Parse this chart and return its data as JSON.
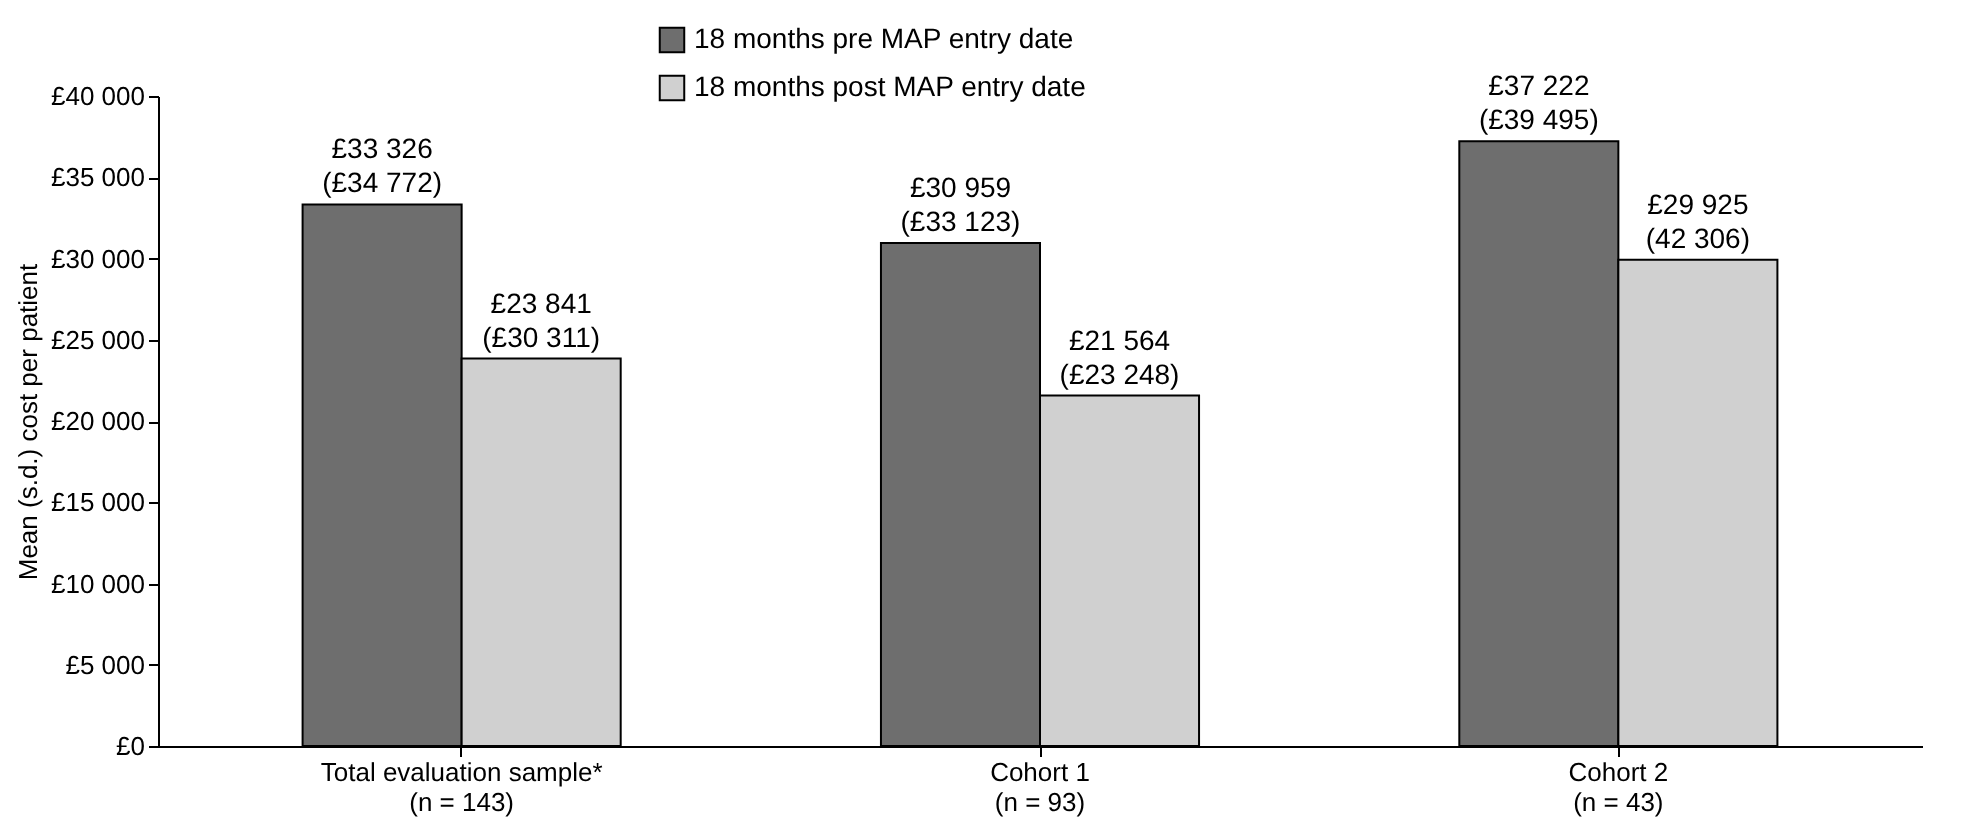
{
  "chart_data": {
    "type": "bar",
    "ylabel": "Mean (s.d.) cost per patient",
    "categories": [
      "Total evaluation sample*\n(n = 143)",
      "Cohort 1\n(n = 93)",
      "Cohort 2\n(n = 43)"
    ],
    "series": [
      {
        "name": "18 months pre MAP entry date",
        "color": "#6e6e6e",
        "values": [
          33326,
          30959,
          37222
        ],
        "value_labels": [
          "£33 326\n(£34 772)",
          "£30 959\n(£33 123)",
          "£37 222\n(£39 495)"
        ]
      },
      {
        "name": "18 months post MAP entry date",
        "color": "#d0d0d0",
        "values": [
          23841,
          21564,
          29925
        ],
        "value_labels": [
          "£23 841\n(£30 311)",
          "£21 564\n(£23 248)",
          "£29 925\n(42 306)"
        ]
      }
    ],
    "ylim": [
      0,
      40000
    ],
    "yticks": [
      {
        "value": 0,
        "label": "£0"
      },
      {
        "value": 5000,
        "label": "£5 000"
      },
      {
        "value": 10000,
        "label": "£10 000"
      },
      {
        "value": 15000,
        "label": "£15 000"
      },
      {
        "value": 20000,
        "label": "£20 000"
      },
      {
        "value": 25000,
        "label": "£25 000"
      },
      {
        "value": 30000,
        "label": "£30 000"
      },
      {
        "value": 35000,
        "label": "£35 000"
      },
      {
        "value": 40000,
        "label": "£40 000"
      }
    ],
    "grid": false,
    "legend": "top"
  }
}
